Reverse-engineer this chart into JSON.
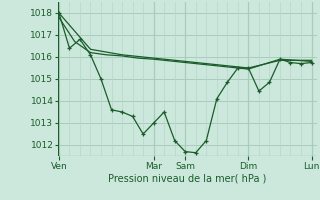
{
  "background_color": "#cce8dc",
  "grid_color_major": "#a8ccbc",
  "grid_color_minor": "#b8d8c8",
  "line_color": "#1a5c2a",
  "ylim": [
    1011.5,
    1018.5
  ],
  "yticks": [
    1012,
    1013,
    1014,
    1015,
    1016,
    1017,
    1018
  ],
  "xlabel": "Pression niveau de la mer( hPa )",
  "x_day_labels": [
    "Ven",
    "Mar",
    "Sam",
    "Dim",
    "Lun"
  ],
  "x_day_positions": [
    0,
    72,
    96,
    144,
    192
  ],
  "xlim": [
    -1,
    196
  ],
  "series1_x": [
    0,
    24,
    48,
    72,
    96,
    120,
    144,
    168,
    192
  ],
  "series1_y": [
    1018.0,
    1016.35,
    1016.1,
    1015.95,
    1015.8,
    1015.65,
    1015.5,
    1015.85,
    1015.85
  ],
  "series2_x": [
    0,
    12,
    24,
    36,
    48,
    60,
    72,
    96,
    120,
    144,
    168,
    192
  ],
  "series2_y": [
    1017.8,
    1016.7,
    1016.2,
    1016.1,
    1016.05,
    1015.95,
    1015.9,
    1015.75,
    1015.6,
    1015.45,
    1015.9,
    1015.8
  ],
  "series3_x": [
    0,
    8,
    16,
    24,
    32,
    40,
    48,
    56,
    64,
    72,
    80,
    88,
    96,
    104,
    112,
    120,
    128,
    136,
    144,
    152,
    160,
    168,
    176,
    184,
    192
  ],
  "series3_y": [
    1018.0,
    1016.4,
    1016.8,
    1016.1,
    1015.0,
    1013.6,
    1013.5,
    1013.3,
    1012.5,
    1013.0,
    1013.5,
    1012.2,
    1011.7,
    1011.65,
    1012.2,
    1014.1,
    1014.85,
    1015.5,
    1015.5,
    1014.45,
    1014.85,
    1015.9,
    1015.75,
    1015.7,
    1015.75
  ]
}
